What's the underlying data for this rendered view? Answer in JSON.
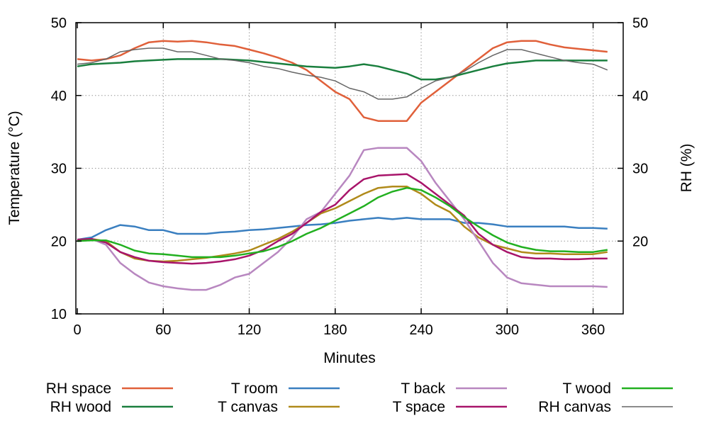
{
  "chart_data": {
    "type": "line",
    "xlabel": "Minutes",
    "ylabel": "Temperature (°C)",
    "y2label": "RH (%)",
    "xlim": [
      -1,
      381
    ],
    "ylim": [
      10,
      50
    ],
    "y2lim": [
      10,
      50
    ],
    "xticks": [
      0,
      60,
      120,
      180,
      240,
      300,
      360
    ],
    "yticks": [
      10,
      20,
      30,
      40,
      50
    ],
    "y2ticks": [
      20,
      30,
      40,
      50
    ],
    "grid": true,
    "legend_placement": "bottom",
    "x": [
      0,
      10,
      20,
      30,
      40,
      50,
      60,
      70,
      80,
      90,
      100,
      110,
      120,
      130,
      140,
      150,
      160,
      170,
      180,
      190,
      200,
      210,
      220,
      230,
      240,
      250,
      260,
      270,
      280,
      290,
      300,
      310,
      320,
      330,
      340,
      350,
      360,
      370
    ],
    "series": [
      {
        "name": "RH space",
        "color": "#e0603a",
        "axis": "right",
        "values": [
          45,
          44.8,
          45,
          45.5,
          46.5,
          47.3,
          47.5,
          47.4,
          47.5,
          47.3,
          47,
          46.8,
          46.3,
          45.8,
          45.2,
          44.5,
          43.5,
          42,
          40.5,
          39.5,
          37,
          36.5,
          36.5,
          36.5,
          39,
          40.5,
          42,
          43.5,
          45,
          46.5,
          47.3,
          47.5,
          47.5,
          47,
          46.6,
          46.4,
          46.2,
          46
        ]
      },
      {
        "name": "RH wood",
        "color": "#1a7f3e",
        "axis": "right",
        "values": [
          44,
          44.3,
          44.4,
          44.5,
          44.7,
          44.8,
          44.9,
          45,
          45,
          45,
          45,
          44.9,
          44.8,
          44.6,
          44.4,
          44.2,
          44,
          43.9,
          43.8,
          44,
          44.3,
          44,
          43.5,
          43,
          42.2,
          42.2,
          42.5,
          43,
          43.5,
          44,
          44.4,
          44.6,
          44.8,
          44.8,
          44.8,
          44.8,
          44.8,
          44.8
        ]
      },
      {
        "name": "T room",
        "color": "#3a7fc0",
        "axis": "left",
        "values": [
          20.2,
          20.5,
          21.5,
          22.2,
          22,
          21.5,
          21.5,
          21,
          21,
          21,
          21.2,
          21.3,
          21.5,
          21.6,
          21.8,
          22,
          22.2,
          22.3,
          22.5,
          22.8,
          23,
          23.2,
          23,
          23.2,
          23,
          23,
          23,
          22.5,
          22.5,
          22.3,
          22,
          22,
          22,
          22,
          22,
          21.8,
          21.8,
          21.7
        ]
      },
      {
        "name": "T canvas",
        "color": "#b08a1a",
        "axis": "left",
        "values": [
          20.2,
          20.3,
          20,
          18.5,
          17.6,
          17.3,
          17.2,
          17.3,
          17.5,
          17.7,
          18,
          18.3,
          18.7,
          19.5,
          20.3,
          21.3,
          22.5,
          23.8,
          24.5,
          25.5,
          26.5,
          27.3,
          27.5,
          27.5,
          26.5,
          25,
          24,
          22,
          20.5,
          19.5,
          19,
          18.5,
          18.3,
          18.3,
          18.2,
          18.2,
          18.2,
          18.5
        ]
      },
      {
        "name": "T back",
        "color": "#b887c0",
        "axis": "left",
        "values": [
          20.2,
          20.3,
          19.5,
          17,
          15.5,
          14.3,
          13.8,
          13.5,
          13.3,
          13.3,
          14,
          15,
          15.5,
          17,
          18.5,
          20.5,
          23,
          24,
          26.5,
          29,
          32.5,
          32.8,
          32.8,
          32.8,
          31,
          28,
          25.5,
          23,
          20,
          17,
          15,
          14.2,
          14,
          13.8,
          13.8,
          13.8,
          13.8,
          13.7
        ]
      },
      {
        "name": "T space",
        "color": "#a8146a",
        "axis": "left",
        "values": [
          20.2,
          20.3,
          19.8,
          18.5,
          17.8,
          17.3,
          17.1,
          17,
          16.9,
          17,
          17.2,
          17.5,
          18,
          18.8,
          20,
          21,
          22.5,
          24,
          25,
          27,
          28.5,
          29,
          29.1,
          29.2,
          28,
          26.5,
          25,
          23.5,
          21,
          19.5,
          18.5,
          17.8,
          17.6,
          17.6,
          17.5,
          17.5,
          17.6,
          17.6
        ]
      },
      {
        "name": "T wood",
        "color": "#22b020",
        "axis": "left",
        "values": [
          20,
          20.1,
          20.1,
          19.5,
          18.7,
          18.3,
          18.2,
          18,
          17.8,
          17.8,
          17.8,
          18,
          18.3,
          18.6,
          19.2,
          20,
          21,
          21.8,
          22.8,
          23.8,
          24.8,
          26,
          26.8,
          27.3,
          27,
          26,
          24.8,
          23.3,
          22,
          20.8,
          19.8,
          19.2,
          18.8,
          18.6,
          18.6,
          18.5,
          18.5,
          18.8
        ]
      },
      {
        "name": "RH canvas",
        "color": "#666666",
        "axis": "right",
        "values": [
          44.3,
          44.5,
          45,
          46,
          46.3,
          46.5,
          46.5,
          46,
          46,
          45.5,
          45,
          44.8,
          44.5,
          44,
          43.7,
          43.2,
          42.8,
          42.5,
          42,
          41,
          40.5,
          39.5,
          39.5,
          39.8,
          41,
          42,
          42.5,
          43.3,
          44.5,
          45.5,
          46.3,
          46.3,
          45.8,
          45.3,
          44.8,
          44.5,
          44.3,
          43.5
        ]
      }
    ]
  }
}
